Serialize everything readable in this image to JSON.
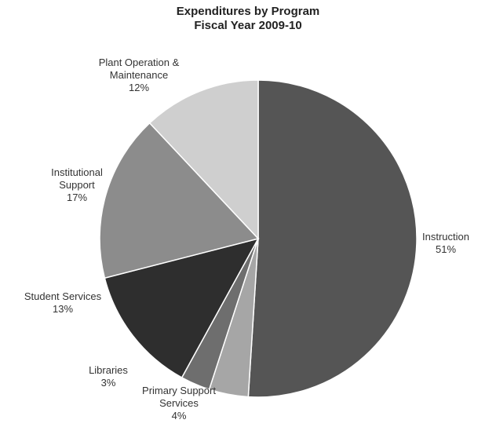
{
  "chart_data": {
    "type": "pie",
    "title": "Expenditures by Program",
    "subtitle": "Fiscal Year 2009-10",
    "slices": [
      {
        "label": "Instruction",
        "value": 51,
        "value_label": "51%",
        "color": "#555555"
      },
      {
        "label": "Primary Support Services",
        "value": 4,
        "value_label": "4%",
        "color": "#a6a6a6"
      },
      {
        "label": "Libraries",
        "value": 3,
        "value_label": "3%",
        "color": "#6e6e6e"
      },
      {
        "label": "Student Services",
        "value": 13,
        "value_label": "13%",
        "color": "#2e2e2e"
      },
      {
        "label": "Institutional Support",
        "value": 17,
        "value_label": "17%",
        "color": "#8c8c8c"
      },
      {
        "label": "Plant Operation & Maintenance",
        "value": 12,
        "value_label": "12%",
        "color": "#cfcfcf"
      }
    ],
    "label_lines": [
      [
        "Instruction",
        "51%"
      ],
      [
        "Primary Support",
        "Services",
        "4%"
      ],
      [
        "Libraries",
        "3%"
      ],
      [
        "Student Services",
        "13%"
      ],
      [
        "Institutional",
        "Support",
        "17%"
      ],
      [
        "Plant Operation &",
        "Maintenance",
        "12%"
      ]
    ]
  }
}
